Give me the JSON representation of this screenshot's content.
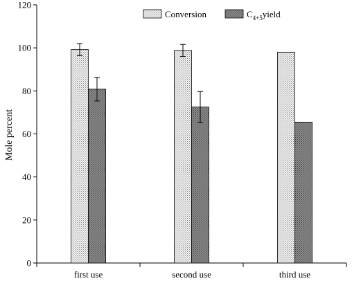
{
  "chart_data": {
    "type": "bar",
    "categories": [
      "first use",
      "second use",
      "third use"
    ],
    "ylabel": "Mole percent",
    "ylim": [
      0,
      120
    ],
    "yticks": [
      0,
      20,
      40,
      60,
      80,
      100,
      120
    ],
    "grid": false,
    "legend_position": "top-right",
    "series": [
      {
        "name": "Conversion",
        "values": [
          99.2,
          98.8,
          98.0
        ],
        "error": [
          2.8,
          2.8,
          null
        ],
        "pattern": "light-dotted"
      },
      {
        "name_main": "C",
        "name_sub": "4+5",
        "name_suffix": "yield",
        "values": [
          80.8,
          72.5,
          65.5
        ],
        "error": [
          5.5,
          7.2,
          null
        ],
        "pattern": "dark-dotted"
      }
    ]
  }
}
